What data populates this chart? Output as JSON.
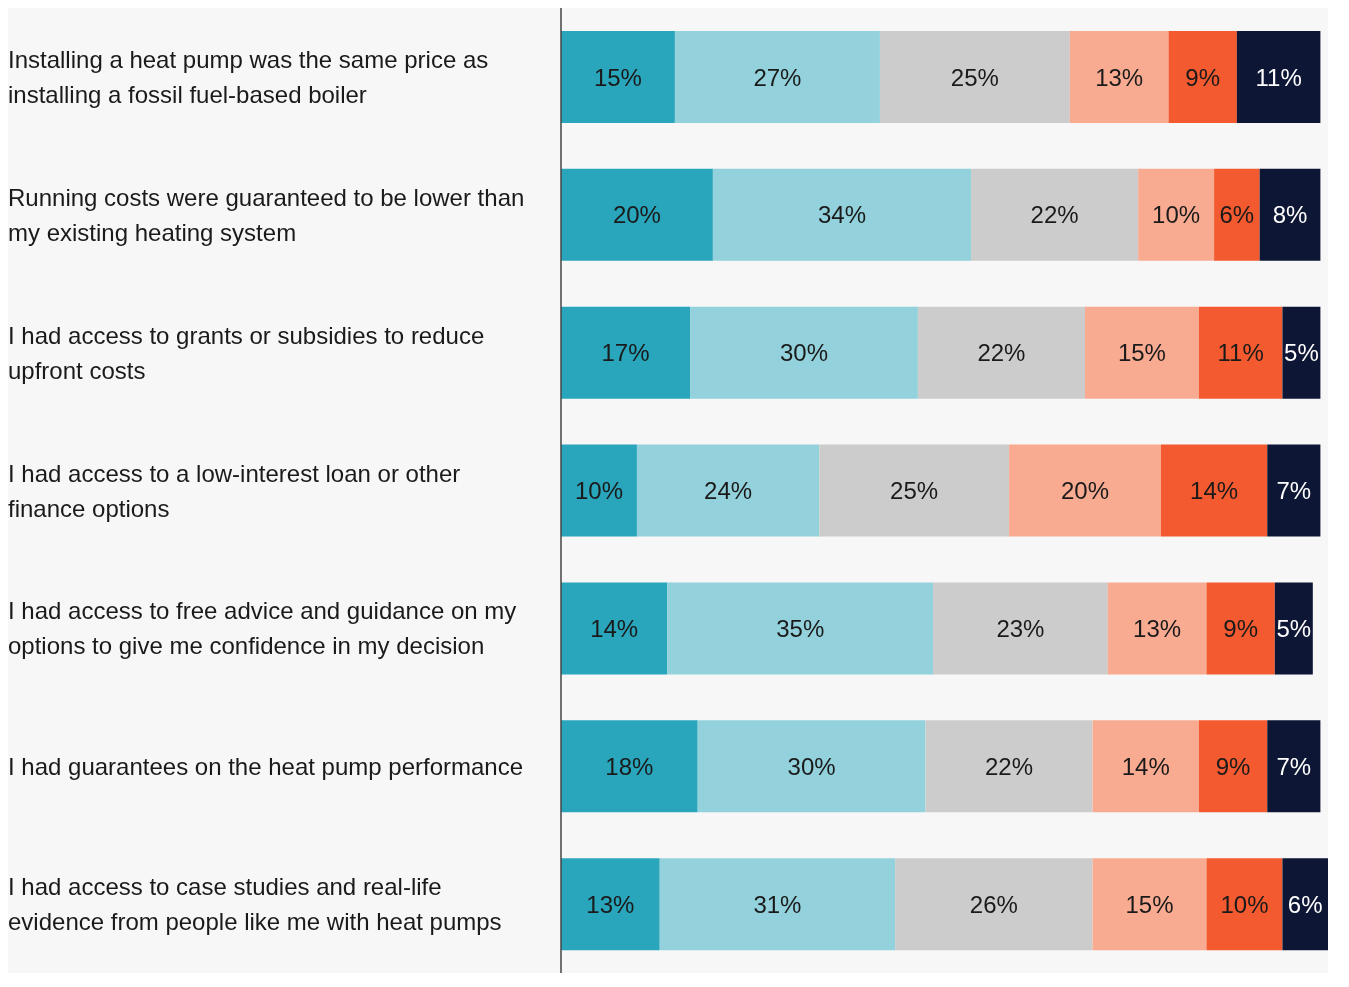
{
  "chart_data": {
    "type": "bar",
    "orientation": "horizontal",
    "stacked": true,
    "categories": [
      "Installing a heat pump was the same price as installing a fossil fuel-based boiler",
      "Running costs were guaranteed to be lower than my existing heating system",
      "I had access to grants or subsidies to reduce upfront costs",
      "I had access to a low-interest loan or other finance options",
      "I had access to free advice and guidance on my options to give me confidence in my decision",
      "I had guarantees on the heat pump performance",
      "I had access to case studies and real-life evidence from people like me with heat pumps"
    ],
    "series": [
      {
        "color": "#29a6bb",
        "values": [
          15,
          20,
          17,
          10,
          14,
          18,
          13
        ],
        "value_labels": [
          "15%",
          "20%",
          "17%",
          "10%",
          "14%",
          "18%",
          "13%"
        ]
      },
      {
        "color": "#93d2dc",
        "values": [
          27,
          34,
          30,
          24,
          35,
          30,
          31
        ],
        "value_labels": [
          "27%",
          "34%",
          "30%",
          "24%",
          "35%",
          "30%",
          "31%"
        ]
      },
      {
        "color": "#cccccc",
        "values": [
          25,
          22,
          22,
          25,
          23,
          22,
          26
        ],
        "value_labels": [
          "25%",
          "22%",
          "22%",
          "25%",
          "23%",
          "22%",
          "26%"
        ]
      },
      {
        "color": "#f9ab92",
        "values": [
          13,
          10,
          15,
          20,
          13,
          14,
          15
        ],
        "value_labels": [
          "13%",
          "10%",
          "15%",
          "20%",
          "13%",
          "14%",
          "15%"
        ]
      },
      {
        "color": "#f45a2f",
        "values": [
          9,
          6,
          11,
          14,
          9,
          9,
          10
        ],
        "value_labels": [
          "9%",
          "6%",
          "11%",
          "14%",
          "9%",
          "9%",
          "10%"
        ]
      },
      {
        "color": "#0d1634",
        "values": [
          11,
          8,
          5,
          7,
          5,
          7,
          6
        ],
        "value_labels": [
          "11%",
          "8%",
          "5%",
          "7%",
          "5%",
          "7%",
          "6%"
        ]
      }
    ]
  }
}
